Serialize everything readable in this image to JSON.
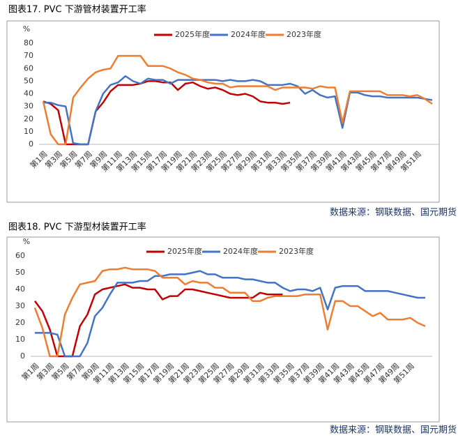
{
  "chart_data": [
    {
      "type": "line",
      "title": "图表17. PVC 下游管材装置开工率",
      "ylabel": "%",
      "source": "数据来源：钢联数据、国元期货",
      "categories": [
        "第1周",
        null,
        "第3周",
        null,
        "第5周",
        null,
        "第7周",
        null,
        "第9周",
        null,
        "第11周",
        null,
        "第13周",
        null,
        "第15周",
        null,
        "第17周",
        null,
        "第19周",
        null,
        "第21周",
        null,
        "第23周",
        null,
        "第25周",
        null,
        "第27周",
        null,
        "第29周",
        null,
        "第31周",
        null,
        "第33周",
        null,
        "第35周",
        null,
        "第37周",
        null,
        "第39周",
        null,
        "第41周",
        null,
        "第43周",
        null,
        "第45周",
        null,
        "第47周",
        null,
        "第49周",
        null,
        "第51周",
        null,
        null
      ],
      "ylim": [
        0,
        80
      ],
      "yticks": [
        0,
        10,
        20,
        30,
        40,
        50,
        60,
        70,
        80
      ],
      "series": [
        {
          "name": "2025年度",
          "color": "#c00000",
          "values": [
            34,
            32,
            27,
            0,
            0,
            0,
            0,
            26,
            33,
            42,
            47,
            47,
            47,
            48,
            50,
            50,
            49,
            49,
            43,
            48,
            49,
            46,
            44,
            45,
            43,
            40,
            39,
            40,
            38,
            34,
            33,
            33,
            32,
            33,
            null,
            null,
            null,
            null,
            null,
            null,
            null,
            null,
            null,
            null,
            null,
            null,
            null,
            null,
            null,
            null,
            null,
            null,
            null
          ]
        },
        {
          "name": "2024年度",
          "color": "#4472c4",
          "values": [
            33,
            33,
            31,
            30,
            1,
            0,
            0,
            26,
            40,
            47,
            49,
            54,
            50,
            48,
            52,
            51,
            51,
            48,
            51,
            51,
            51,
            51,
            51,
            51,
            50,
            51,
            50,
            50,
            51,
            50,
            47,
            47,
            47,
            48,
            46,
            40,
            43,
            39,
            37,
            38,
            13,
            41,
            41,
            39,
            38,
            38,
            37,
            37,
            37,
            37,
            37,
            36,
            35
          ]
        },
        {
          "name": "2023年度",
          "color": "#ed7d31",
          "values": [
            34,
            8,
            0,
            0,
            37,
            45,
            52,
            57,
            59,
            60,
            70,
            70,
            70,
            70,
            62,
            62,
            62,
            60,
            57,
            55,
            52,
            51,
            49,
            48,
            48,
            45,
            46,
            46,
            46,
            46,
            46,
            43,
            45,
            45,
            45,
            45,
            44,
            46,
            45,
            45,
            17,
            42,
            42,
            42,
            42,
            42,
            39,
            39,
            39,
            38,
            39,
            36,
            32
          ]
        }
      ]
    },
    {
      "type": "line",
      "title": "图表18. PVC 下游型材装置开工率",
      "ylabel": "%",
      "source": "数据来源：钢联数据、国元期货",
      "categories": [
        "第1周",
        null,
        "第3周",
        null,
        "第5周",
        null,
        "第7周",
        null,
        "第9周",
        null,
        "第11周",
        null,
        "第13周",
        null,
        "第15周",
        null,
        "第17周",
        null,
        "第19周",
        null,
        "第21周",
        null,
        "第23周",
        null,
        "第25周",
        null,
        "第27周",
        null,
        "第29周",
        null,
        "第31周",
        null,
        "第33周",
        null,
        "第35周",
        null,
        "第37周",
        null,
        "第39周",
        null,
        "第41周",
        null,
        "第43周",
        null,
        "第45周",
        null,
        "第47周",
        null,
        "第49周",
        null,
        "第51周",
        null,
        null
      ],
      "ylim": [
        0,
        60
      ],
      "yticks": [
        0,
        10,
        20,
        30,
        40,
        50,
        60
      ],
      "series": [
        {
          "name": "2025年度",
          "color": "#c00000",
          "values": [
            33,
            27,
            16,
            0,
            0,
            0,
            18,
            25,
            37,
            40,
            41,
            42,
            43,
            41,
            41,
            40,
            40,
            34,
            36,
            36,
            40,
            40,
            39,
            38,
            37,
            36,
            35,
            35,
            35,
            35,
            38,
            37,
            37,
            37,
            null,
            null,
            null,
            null,
            null,
            null,
            null,
            null,
            null,
            null,
            null,
            null,
            null,
            null,
            null,
            null,
            null,
            null,
            null
          ]
        },
        {
          "name": "2024年度",
          "color": "#4472c4",
          "values": [
            14,
            14,
            14,
            13,
            0,
            0,
            0,
            8,
            24,
            29,
            37,
            44,
            44,
            44,
            45,
            45,
            48,
            48,
            49,
            49,
            49,
            50,
            51,
            49,
            49,
            47,
            47,
            47,
            46,
            46,
            45,
            44,
            44,
            41,
            39,
            40,
            40,
            39,
            41,
            28,
            41,
            42,
            42,
            42,
            39,
            39,
            39,
            39,
            38,
            37,
            36,
            35,
            35
          ]
        },
        {
          "name": "2023年度",
          "color": "#ed7d31",
          "values": [
            29,
            17,
            0,
            0,
            25,
            35,
            43,
            44,
            45,
            51,
            52,
            52,
            53,
            52,
            52,
            52,
            51,
            47,
            47,
            47,
            43,
            45,
            44,
            44,
            41,
            41,
            38,
            38,
            38,
            33,
            33,
            35,
            36,
            36,
            36,
            36,
            37,
            37,
            37,
            16,
            33,
            33,
            30,
            30,
            27,
            24,
            26,
            22,
            22,
            22,
            23,
            20,
            18
          ]
        }
      ]
    }
  ]
}
